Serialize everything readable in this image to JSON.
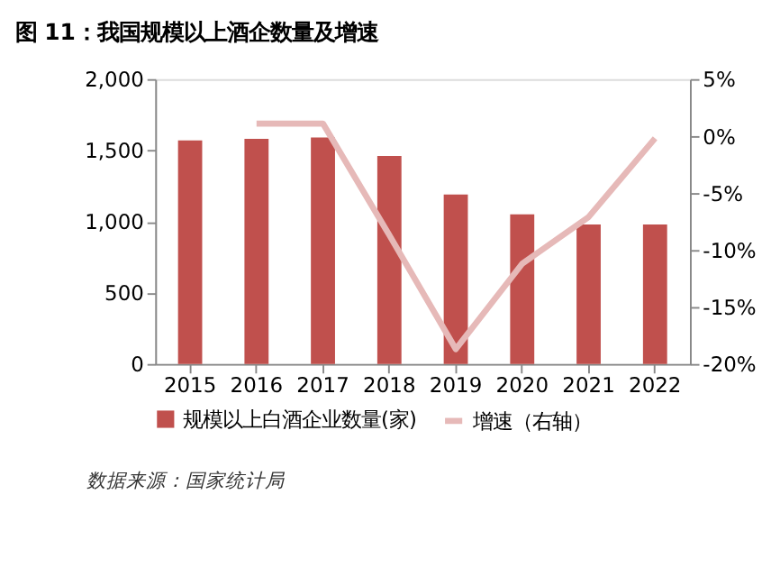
{
  "chart_data": {
    "type": "bar",
    "title": "图 11：我国规模以上酒企数量及增速",
    "categories": [
      "2015",
      "2016",
      "2017",
      "2018",
      "2019",
      "2020",
      "2021",
      "2022"
    ],
    "series": [
      {
        "name": "规模以上白酒企业数量(家)",
        "color": "#c0504d",
        "values": [
          1570,
          1580,
          1590,
          1460,
          1190,
          1050,
          980,
          980
        ]
      },
      {
        "name": "增速（右轴）",
        "type": "line",
        "axis": "y2",
        "color": "#e6b9b8",
        "values": [
          null,
          1.1,
          1.1,
          -8.7,
          -18.7,
          -11.2,
          -7.1,
          -0.2
        ]
      }
    ],
    "ylim": [
      0,
      2000
    ],
    "yticks": [
      0,
      500,
      {
        "value": 1000,
        "label": "1,000"
      },
      {
        "value": 1500,
        "label": "1,500"
      },
      {
        "value": 2000,
        "label": "2,000"
      }
    ],
    "y2lim": [
      -20,
      5
    ],
    "y2ticks": [
      {
        "value": -20,
        "label": "-20%"
      },
      {
        "value": -15,
        "label": "-15%"
      },
      {
        "value": -10,
        "label": "-10%"
      },
      {
        "value": -5,
        "label": "-5%"
      },
      {
        "value": 0,
        "label": "0%"
      },
      {
        "value": 5,
        "label": "5%"
      }
    ],
    "grid": false,
    "legend": "bottom",
    "line_style": "solid",
    "marker": "none",
    "annotations": [
      "数据来源：国家统计局"
    ]
  }
}
